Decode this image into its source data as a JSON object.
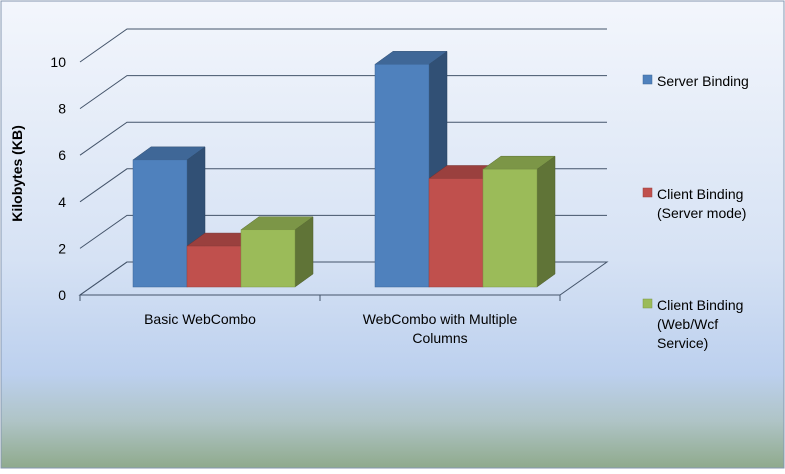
{
  "chart_data": {
    "type": "bar",
    "categories": [
      "Basic WebCombo",
      "WebCombo with Multiple Columns"
    ],
    "category_label_lines": [
      [
        "Basic WebCombo"
      ],
      [
        "WebCombo with Multiple",
        "Columns"
      ]
    ],
    "series": [
      {
        "name": "Server Binding",
        "name_lines": [
          "Server Binding"
        ],
        "values": [
          5.8,
          9.9
        ],
        "color": "#4F81BD"
      },
      {
        "name": "Client Binding (Server mode)",
        "name_lines": [
          "Client Binding",
          "(Server mode)"
        ],
        "values": [
          2.1,
          5.0
        ],
        "color": "#C0504D"
      },
      {
        "name": "Client Binding (Web/Wcf Service)",
        "name_lines": [
          "Client Binding",
          "(Web/Wcf",
          "Service)"
        ],
        "values": [
          2.8,
          5.4
        ],
        "color": "#9BBB59"
      }
    ],
    "ylabel": "Kilobytes (KB)",
    "xlabel": "",
    "title": "",
    "ylim": [
      0,
      10
    ],
    "yticks": [
      0,
      2,
      4,
      6,
      8,
      10
    ],
    "grid": true,
    "legend_position": "right",
    "style": "3d-clustered-column",
    "background": {
      "top": "#F3F6FC",
      "middle": "#BCD0EE",
      "bottom": "#8FAA8C"
    }
  }
}
